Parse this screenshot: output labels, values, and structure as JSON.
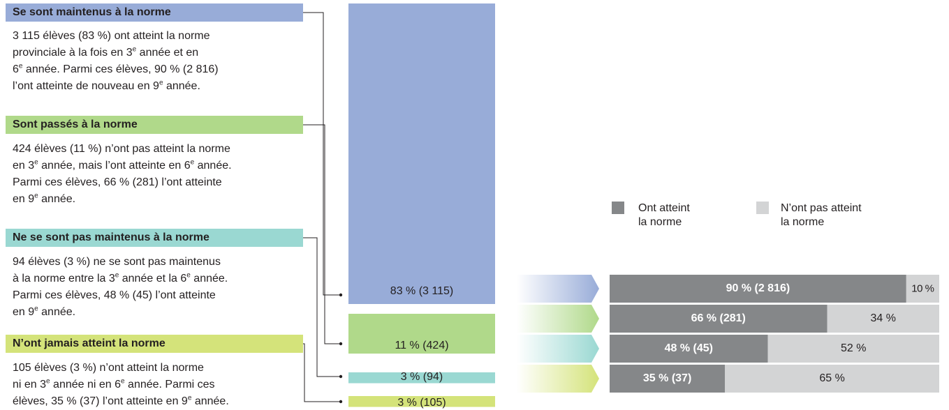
{
  "categories": [
    {
      "title": "Se sont maintenus à la norme",
      "color": "#98acd8",
      "desc": [
        "3 115 élèves (83 %) ont atteint la norme",
        "provinciale à la fois en 3^e année et en",
        "6^e année. Parmi ces élèves, 90 % (2 816)",
        "l’ont atteinte de nouveau en 9^e année."
      ]
    },
    {
      "title": "Sont passés à la norme",
      "color": "#b0d98a",
      "desc": [
        "424 élèves (11 %) n’ont pas atteint la norme",
        "en 3^e année, mais l’ont atteinte en 6^e année.",
        "Parmi ces élèves, 66 % (281) l’ont atteinte",
        "en 9^e année."
      ]
    },
    {
      "title": "Ne se sont pas maintenus à la norme",
      "color": "#9ad8d2",
      "desc": [
        "94 élèves (3 %) ne se sont pas maintenus",
        "à la norme entre la 3^e année et la 6^e année.",
        "Parmi ces élèves, 48 % (45) l’ont atteinte",
        "en 9^e année."
      ]
    },
    {
      "title": "N’ont jamais atteint la norme",
      "color": "#d4e37a",
      "desc": [
        "105 élèves (3 %) n’ont atteint la norme",
        "ni en 3^e année ni en 6^e année. Parmi ces",
        "élèves, 35 % (37) l’ont atteinte en 9^e année."
      ]
    }
  ],
  "legend": {
    "achieved_line1": "Ont atteint",
    "achieved_line2": "la norme",
    "not_achieved_line1": "N’ont pas atteint",
    "not_achieved_line2": "la norme",
    "achieved_color": "#858789",
    "not_achieved_color": "#d3d4d5"
  },
  "chart_data": [
    {
      "type": "bar",
      "categories": [
        "Se sont maintenus à la norme",
        "Sont passés à la norme",
        "Ne se sont pas maintenus à la norme",
        "N’ont jamais atteint la norme"
      ],
      "values": [
        83,
        11,
        3,
        3
      ],
      "counts": [
        3115,
        424,
        94,
        105
      ],
      "labels": [
        "83 % (3 115)",
        "11 % (424)",
        "3 % (94)",
        "3 % (105)"
      ]
    },
    {
      "type": "bar",
      "stacked": true,
      "orientation": "horizontal",
      "categories": [
        "Se sont maintenus à la norme",
        "Sont passés à la norme",
        "Ne se sont pas maintenus à la norme",
        "N’ont jamais atteint la norme"
      ],
      "series": [
        {
          "name": "Ont atteint la norme",
          "values": [
            90,
            66,
            48,
            35
          ],
          "labels": [
            "90 % (2 816)",
            "66 % (281)",
            "48 % (45)",
            "35 % (37)"
          ]
        },
        {
          "name": "N’ont pas atteint la norme",
          "values": [
            10,
            34,
            52,
            65
          ],
          "labels": [
            "10 %",
            "34 %",
            "52 %",
            "65 %"
          ]
        }
      ]
    }
  ]
}
